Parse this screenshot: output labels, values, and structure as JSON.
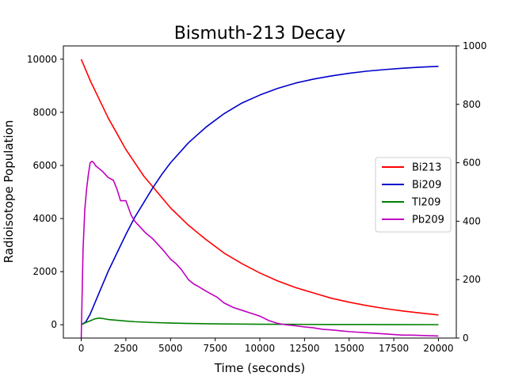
{
  "chart_data": {
    "type": "line",
    "title": "Bismuth-213 Decay",
    "xlabel": "Time (seconds)",
    "ylabel": "Radioisotope Population",
    "xlim": [
      -1000,
      21000
    ],
    "ylim_left": [
      -500,
      10500
    ],
    "ylim_right": [
      0,
      1000
    ],
    "x_ticks": [
      0,
      2500,
      5000,
      7500,
      10000,
      12500,
      15000,
      17500,
      20000
    ],
    "x_tick_labels": [
      "0",
      "2500",
      "5000",
      "7500",
      "10000",
      "12500",
      "15000",
      "17500",
      "20000"
    ],
    "y_left_ticks": [
      0,
      2000,
      4000,
      6000,
      8000,
      10000
    ],
    "y_left_tick_labels": [
      "0",
      "2000",
      "4000",
      "6000",
      "8000",
      "10000"
    ],
    "y_right_ticks": [
      0,
      200,
      400,
      600,
      800,
      1000
    ],
    "y_right_tick_labels": [
      "0",
      "200",
      "400",
      "600",
      "800",
      "1000"
    ],
    "legend_position": "center-right",
    "grid": false,
    "series": [
      {
        "name": "Bi213",
        "color": "#ff0000",
        "axis": "left",
        "x": [
          0,
          500,
          1000,
          1500,
          2000,
          2500,
          3000,
          3500,
          4000,
          5000,
          6000,
          7000,
          8000,
          9000,
          10000,
          11000,
          12000,
          13000,
          14000,
          15000,
          16000,
          17000,
          18000,
          19000,
          20000
        ],
        "y": [
          10000,
          9200,
          8500,
          7800,
          7200,
          6600,
          6100,
          5600,
          5200,
          4400,
          3750,
          3200,
          2700,
          2300,
          1950,
          1650,
          1400,
          1200,
          1000,
          850,
          720,
          610,
          520,
          440,
          370
        ]
      },
      {
        "name": "Bi209",
        "color": "#0000cc",
        "axis": "left",
        "x": [
          0,
          250,
          500,
          750,
          1000,
          1500,
          2000,
          2500,
          3000,
          3500,
          4000,
          4500,
          5000,
          6000,
          7000,
          8000,
          9000,
          10000,
          11000,
          12000,
          13000,
          14000,
          15000,
          16000,
          17000,
          18000,
          19000,
          20000
        ],
        "y": [
          0,
          100,
          400,
          800,
          1200,
          2000,
          2700,
          3400,
          4050,
          4600,
          5150,
          5650,
          6100,
          6850,
          7450,
          7950,
          8350,
          8650,
          8900,
          9100,
          9250,
          9370,
          9470,
          9550,
          9610,
          9660,
          9700,
          9730
        ]
      },
      {
        "name": "Tl209",
        "color": "#008000",
        "axis": "left",
        "x": [
          0,
          250,
          500,
          750,
          1000,
          1250,
          1500,
          2000,
          2500,
          3000,
          4000,
          5000,
          6000,
          7000,
          8000,
          10000,
          12000,
          14000,
          16000,
          18000,
          20000
        ],
        "y": [
          0,
          80,
          150,
          220,
          250,
          230,
          200,
          170,
          140,
          115,
          85,
          65,
          50,
          40,
          30,
          20,
          15,
          10,
          8,
          5,
          3
        ]
      },
      {
        "name": "Pb209",
        "color": "#bf00bf",
        "axis": "right",
        "x": [
          0,
          100,
          200,
          300,
          400,
          500,
          600,
          700,
          800,
          1000,
          1200,
          1500,
          1800,
          2000,
          2200,
          2500,
          2800,
          3000,
          3300,
          3600,
          4000,
          4300,
          4600,
          5000,
          5300,
          5600,
          6000,
          6300,
          6600,
          7000,
          7300,
          7600,
          8000,
          8500,
          9000,
          9500,
          10000,
          10500,
          11000,
          11500,
          12000,
          12500,
          13000,
          13500,
          14000,
          14500,
          15000,
          15500,
          16000,
          16500,
          17000,
          17500,
          18000,
          18500,
          19000,
          19500,
          20000
        ],
        "y": [
          0,
          300,
          440,
          510,
          560,
          600,
          605,
          600,
          590,
          580,
          570,
          550,
          540,
          510,
          470,
          470,
          420,
          400,
          380,
          360,
          340,
          320,
          300,
          270,
          255,
          235,
          200,
          185,
          175,
          160,
          150,
          140,
          120,
          105,
          95,
          85,
          75,
          60,
          50,
          45,
          42,
          38,
          35,
          30,
          28,
          25,
          22,
          20,
          18,
          16,
          14,
          12,
          10,
          10,
          9,
          8,
          7
        ]
      }
    ]
  }
}
